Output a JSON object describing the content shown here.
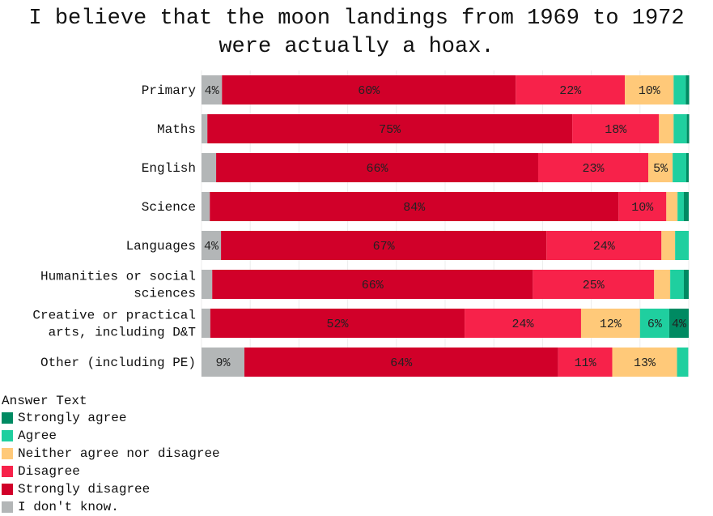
{
  "chart_data": {
    "type": "bar",
    "orientation": "horizontal",
    "stacked": true,
    "title": "I believe that the moon landings from 1969 to 1972\nwere actually a hoax.",
    "xlim": [
      0,
      100
    ],
    "grid": true,
    "legend_title": "Answer Text",
    "legend_position": "bottom-left",
    "categories": [
      "Primary",
      "Maths",
      "English",
      "Science",
      "Languages",
      "Humanities or social\nsciences",
      "Creative or practical\narts, including D&T",
      "Other (including PE)"
    ],
    "series": [
      {
        "name": "I don't know.",
        "color": "#b3b6b7",
        "values": [
          4.2,
          1.2,
          3.0,
          1.7,
          4.0,
          2.2,
          1.8,
          8.8
        ]
      },
      {
        "name": "Strongly disagree",
        "color": "#d10029",
        "values": [
          60.3,
          74.9,
          66.1,
          83.9,
          66.8,
          65.8,
          52.2,
          64.4
        ]
      },
      {
        "name": "Disagree",
        "color": "#f7224a",
        "values": [
          22.4,
          17.8,
          22.6,
          9.8,
          23.6,
          24.9,
          23.9,
          11.1
        ]
      },
      {
        "name": "Neither agree nor disagree",
        "color": "#ffc979",
        "values": [
          10.0,
          3.0,
          5.0,
          2.3,
          2.8,
          3.3,
          12.1,
          13.3
        ]
      },
      {
        "name": "Agree",
        "color": "#1fcf9f",
        "values": [
          2.5,
          2.7,
          2.8,
          1.3,
          2.8,
          2.8,
          6.0,
          2.3
        ]
      },
      {
        "name": "Strongly agree",
        "color": "#008a62",
        "values": [
          0.7,
          0.5,
          0.5,
          1.0,
          0.0,
          1.0,
          4.0,
          0.0
        ]
      }
    ],
    "legend_order": [
      "Strongly agree",
      "Agree",
      "Neither agree nor disagree",
      "Disagree",
      "Strongly disagree",
      "I don't know."
    ]
  }
}
